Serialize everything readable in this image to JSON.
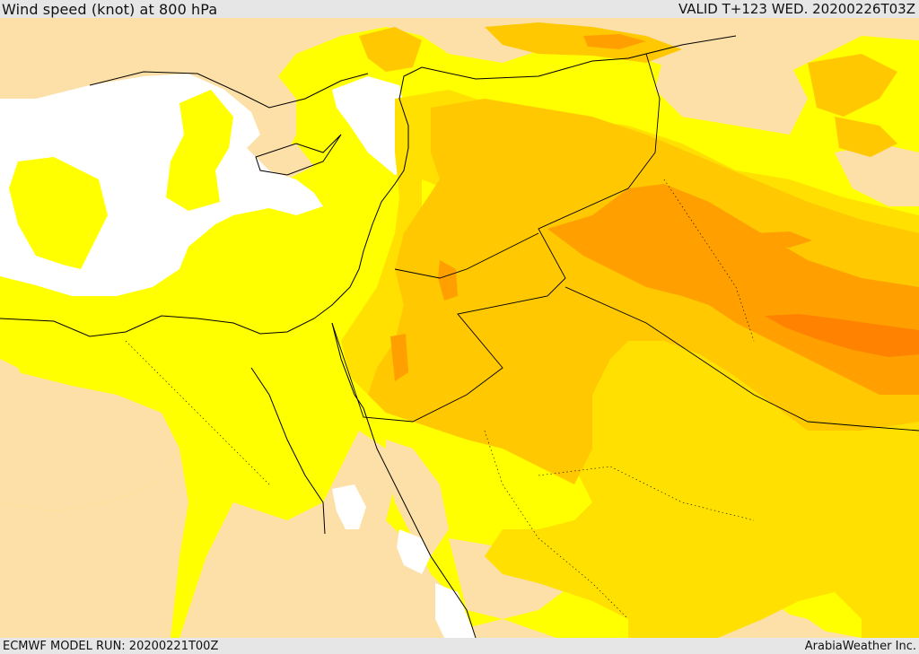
{
  "header": {
    "title": "Wind speed (knot) at 800 hPa",
    "valid": "VALID T+123 WED. 20200226T03Z"
  },
  "footer": {
    "model_run": "ECMWF MODEL RUN: 20200221T00Z",
    "credit": "ArabiaWeather Inc."
  },
  "map": {
    "variable": "Wind speed",
    "units": "knot",
    "level": "800 hPa",
    "colors": {
      "background_light": "#ffffff",
      "band_1": "#fde0a8",
      "band_2": "#ffff00",
      "band_3": "#ffe000",
      "band_4": "#ffc800",
      "band_5": "#ffa000",
      "band_6": "#ff8200",
      "boundaries": "#000000"
    }
  }
}
